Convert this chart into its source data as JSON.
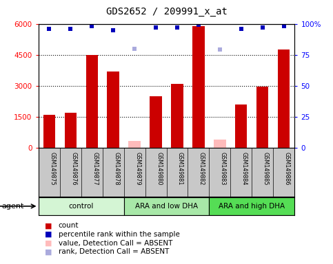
{
  "title": "GDS2652 / 209991_x_at",
  "samples": [
    "GSM149875",
    "GSM149876",
    "GSM149877",
    "GSM149878",
    "GSM149879",
    "GSM149880",
    "GSM149881",
    "GSM149882",
    "GSM149883",
    "GSM149884",
    "GSM149885",
    "GSM149886"
  ],
  "counts": [
    1600,
    1700,
    4500,
    3700,
    null,
    2500,
    3100,
    5900,
    null,
    2100,
    2950,
    4750
  ],
  "absent_counts": [
    null,
    null,
    null,
    null,
    350,
    null,
    null,
    null,
    400,
    null,
    null,
    null
  ],
  "percentile_ranks": [
    96,
    96,
    98,
    95,
    null,
    97,
    97,
    99,
    null,
    96,
    97,
    98
  ],
  "absent_ranks": [
    null,
    null,
    null,
    null,
    80,
    null,
    null,
    null,
    79,
    null,
    null,
    null
  ],
  "groups": [
    {
      "label": "control",
      "start": 0,
      "end": 4,
      "color": "#d4f5d4"
    },
    {
      "label": "ARA and low DHA",
      "start": 4,
      "end": 8,
      "color": "#a8e8a8"
    },
    {
      "label": "ARA and high DHA",
      "start": 8,
      "end": 12,
      "color": "#55dd55"
    }
  ],
  "bar_color_present": "#cc0000",
  "bar_color_absent": "#ffbbbb",
  "marker_color_present": "#0000bb",
  "marker_color_absent": "#aaaadd",
  "ylim_left": [
    0,
    6000
  ],
  "ylim_right": [
    0,
    100
  ],
  "yticks_left": [
    0,
    1500,
    3000,
    4500,
    6000
  ],
  "yticks_right": [
    0,
    25,
    50,
    75,
    100
  ],
  "background_color": "#ffffff",
  "plot_bg_color": "#ffffff",
  "label_bg_color": "#c8c8c8",
  "agent_label": "agent",
  "legend_items": [
    {
      "label": "count",
      "color": "#cc0000"
    },
    {
      "label": "percentile rank within the sample",
      "color": "#0000bb"
    },
    {
      "label": "value, Detection Call = ABSENT",
      "color": "#ffbbbb"
    },
    {
      "label": "rank, Detection Call = ABSENT",
      "color": "#aaaadd"
    }
  ]
}
